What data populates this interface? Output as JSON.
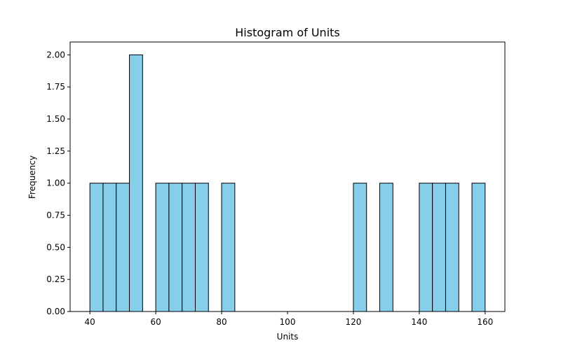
{
  "chart_data": {
    "type": "bar",
    "subtype": "histogram",
    "title": "Histogram of Units",
    "xlabel": "Units",
    "ylabel": "Frequency",
    "bins": {
      "start": 40,
      "end": 160,
      "count": 30,
      "width": 4
    },
    "counts": [
      1,
      1,
      1,
      2,
      0,
      1,
      1,
      1,
      1,
      0,
      1,
      0,
      0,
      0,
      0,
      0,
      0,
      0,
      0,
      0,
      1,
      0,
      1,
      0,
      0,
      1,
      1,
      1,
      0,
      1
    ],
    "xlim": [
      34,
      166
    ],
    "ylim": [
      0,
      2.1
    ],
    "xticks": [
      40,
      60,
      80,
      100,
      120,
      140,
      160
    ],
    "xtick_labels": [
      "40",
      "60",
      "80",
      "100",
      "120",
      "140",
      "160"
    ],
    "yticks": [
      0,
      0.25,
      0.5,
      0.75,
      1.0,
      1.25,
      1.5,
      1.75,
      2.0
    ],
    "ytick_labels": [
      "0.00",
      "0.25",
      "0.50",
      "0.75",
      "1.00",
      "1.25",
      "1.50",
      "1.75",
      "2.00"
    ],
    "bar_color": "#87ceeb",
    "edge_color": "#000000",
    "grid": false,
    "legend": "none"
  }
}
